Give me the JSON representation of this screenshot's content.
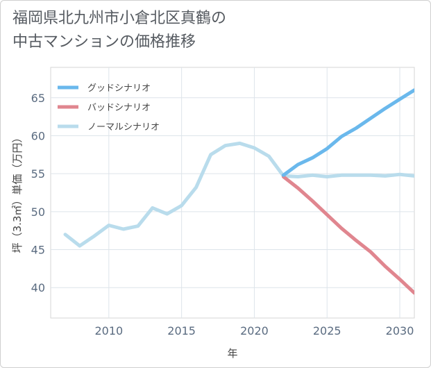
{
  "title": {
    "line1": "福岡県北九州市小倉北区真鶴の",
    "line2": "中古マンションの価格推移"
  },
  "chart_data": {
    "type": "line",
    "xlabel": "年",
    "ylabel": "坪（3.3㎡）単価（万円）",
    "xlim": [
      2006,
      2031
    ],
    "ylim": [
      36,
      69
    ],
    "x_ticks": [
      2010,
      2015,
      2020,
      2025,
      2030
    ],
    "y_ticks": [
      40,
      45,
      50,
      55,
      60,
      65
    ],
    "grid": true,
    "legend_position": "top-left",
    "series": [
      {
        "name": "グッドシナリオ",
        "color": "#6ab8ec",
        "x": [
          2022,
          2023,
          2024,
          2025,
          2026,
          2027,
          2028,
          2029,
          2030,
          2031
        ],
        "y": [
          54.8,
          56.2,
          57.1,
          58.3,
          59.9,
          61.0,
          62.3,
          63.6,
          64.8,
          66.0
        ]
      },
      {
        "name": "バッドシナリオ",
        "color": "#e0868f",
        "x": [
          2022,
          2023,
          2024,
          2025,
          2026,
          2027,
          2028,
          2029,
          2030,
          2031
        ],
        "y": [
          54.6,
          53.1,
          51.4,
          49.6,
          47.8,
          46.2,
          44.7,
          42.8,
          41.1,
          39.3
        ]
      },
      {
        "name": "ノーマルシナリオ",
        "color": "#b9dcec",
        "x": [
          2007,
          2008,
          2009,
          2010,
          2011,
          2012,
          2013,
          2014,
          2015,
          2016,
          2017,
          2018,
          2019,
          2020,
          2021,
          2022,
          2023,
          2024,
          2025,
          2026,
          2027,
          2028,
          2029,
          2030,
          2031
        ],
        "y": [
          47.0,
          45.5,
          46.8,
          48.2,
          47.7,
          48.1,
          50.5,
          49.7,
          50.8,
          53.2,
          57.5,
          58.7,
          59.0,
          58.4,
          57.3,
          54.7,
          54.6,
          54.8,
          54.6,
          54.8,
          54.8,
          54.8,
          54.7,
          54.9,
          54.7
        ]
      }
    ]
  }
}
